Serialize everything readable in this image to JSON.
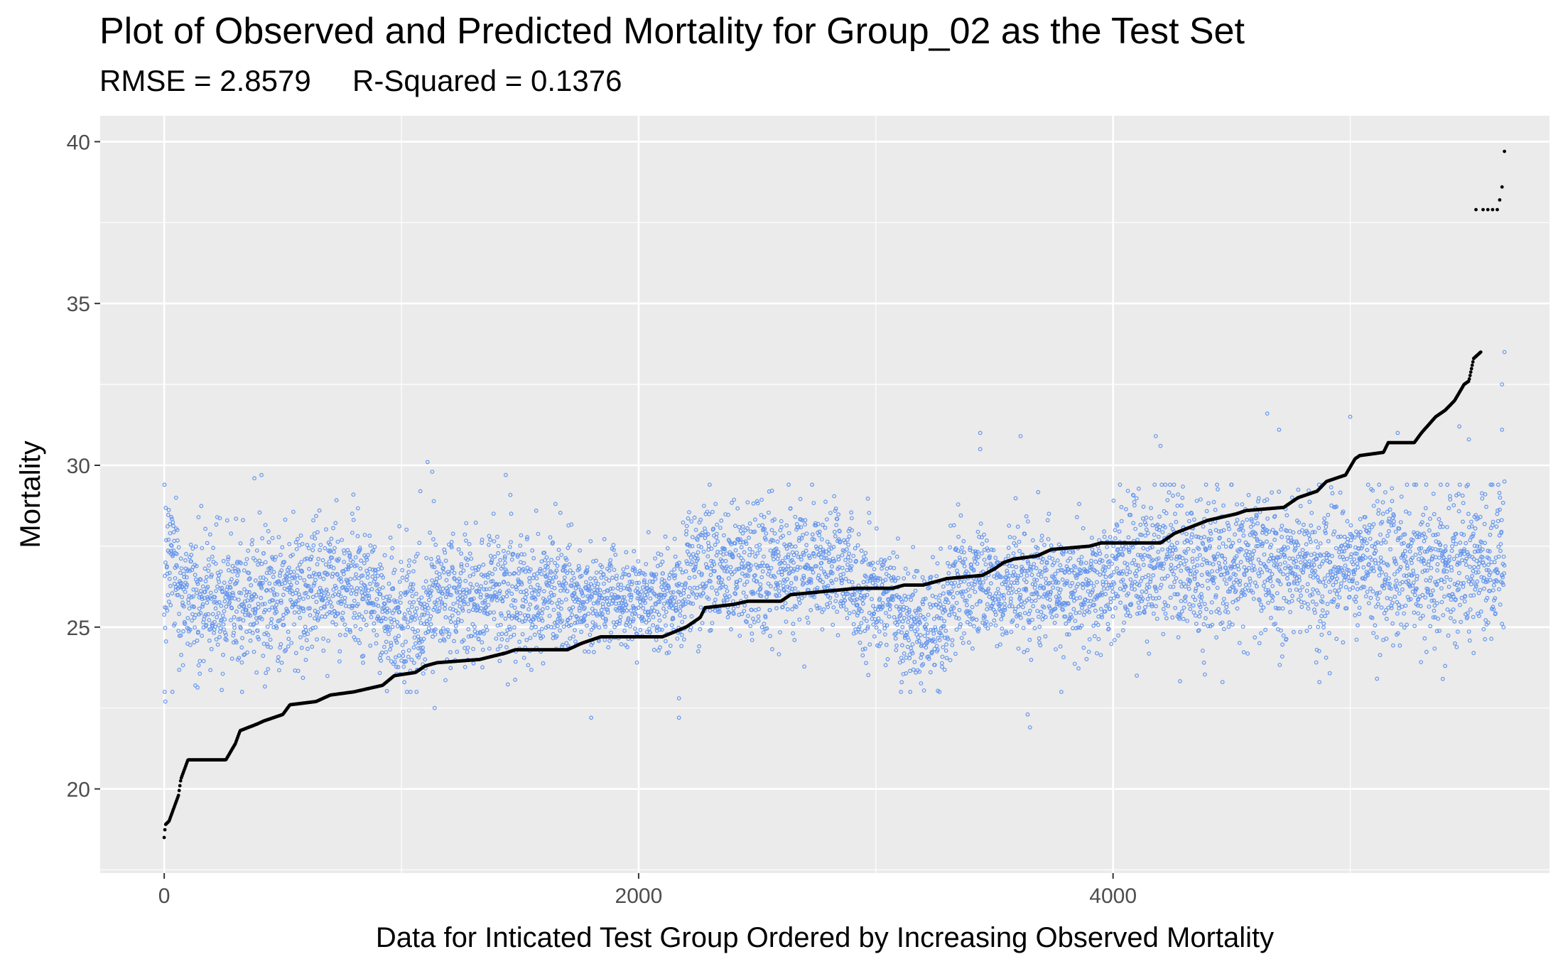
{
  "chart_data": {
    "type": "scatter",
    "title": "Plot of Observed and Predicted Mortality for Group_02 as the Test Set",
    "subtitle": "RMSE = 2.8579     R-Squared = 0.1376",
    "xlabel": "Data for Inticated Test Group Ordered by Increasing Observed Mortality",
    "ylabel": "Mortality",
    "xlim": [
      -270,
      5840
    ],
    "ylim": [
      17.4,
      40.8
    ],
    "x_ticks": [
      0,
      2000,
      4000
    ],
    "y_ticks": [
      20,
      25,
      30,
      35,
      40
    ],
    "grid": true,
    "legend": "none",
    "n_points": 5560,
    "colors": {
      "panel_background": "#ebebeb",
      "grid": "#ffffff",
      "observed": "#000000",
      "predicted": "#6495ed"
    },
    "observed_curve": [
      [
        0,
        18.5
      ],
      [
        5,
        18.9
      ],
      [
        20,
        19.0
      ],
      [
        40,
        19.4
      ],
      [
        60,
        19.8
      ],
      [
        70,
        20.3
      ],
      [
        85,
        20.6
      ],
      [
        100,
        20.9
      ],
      [
        260,
        20.9
      ],
      [
        300,
        21.4
      ],
      [
        320,
        21.8
      ],
      [
        390,
        22.0
      ],
      [
        420,
        22.1
      ],
      [
        500,
        22.3
      ],
      [
        530,
        22.6
      ],
      [
        640,
        22.7
      ],
      [
        700,
        22.9
      ],
      [
        800,
        23.0
      ],
      [
        920,
        23.2
      ],
      [
        970,
        23.5
      ],
      [
        1060,
        23.6
      ],
      [
        1100,
        23.8
      ],
      [
        1150,
        23.9
      ],
      [
        1330,
        24.0
      ],
      [
        1440,
        24.2
      ],
      [
        1480,
        24.3
      ],
      [
        1700,
        24.3
      ],
      [
        1760,
        24.5
      ],
      [
        1840,
        24.7
      ],
      [
        2100,
        24.7
      ],
      [
        2200,
        25.0
      ],
      [
        2260,
        25.3
      ],
      [
        2280,
        25.6
      ],
      [
        2400,
        25.7
      ],
      [
        2460,
        25.8
      ],
      [
        2600,
        25.8
      ],
      [
        2640,
        26.0
      ],
      [
        2780,
        26.1
      ],
      [
        2920,
        26.2
      ],
      [
        3070,
        26.2
      ],
      [
        3120,
        26.3
      ],
      [
        3200,
        26.3
      ],
      [
        3300,
        26.5
      ],
      [
        3450,
        26.6
      ],
      [
        3500,
        26.8
      ],
      [
        3540,
        27.0
      ],
      [
        3580,
        27.1
      ],
      [
        3680,
        27.2
      ],
      [
        3740,
        27.4
      ],
      [
        3900,
        27.5
      ],
      [
        3950,
        27.6
      ],
      [
        4200,
        27.6
      ],
      [
        4260,
        27.9
      ],
      [
        4330,
        28.1
      ],
      [
        4400,
        28.3
      ],
      [
        4520,
        28.5
      ],
      [
        4560,
        28.6
      ],
      [
        4720,
        28.7
      ],
      [
        4780,
        29.0
      ],
      [
        4860,
        29.2
      ],
      [
        4900,
        29.5
      ],
      [
        4980,
        29.7
      ],
      [
        5020,
        30.2
      ],
      [
        5040,
        30.3
      ],
      [
        5140,
        30.4
      ],
      [
        5160,
        30.7
      ],
      [
        5270,
        30.7
      ],
      [
        5300,
        31.0
      ],
      [
        5360,
        31.5
      ],
      [
        5400,
        31.7
      ],
      [
        5440,
        32.0
      ],
      [
        5480,
        32.5
      ],
      [
        5500,
        32.6
      ],
      [
        5520,
        33.3
      ],
      [
        5550,
        33.5
      ]
    ],
    "observed_top_points": [
      [
        5530,
        37.9
      ],
      [
        5560,
        37.9
      ],
      [
        5580,
        37.9
      ],
      [
        5600,
        37.9
      ],
      [
        5620,
        37.9
      ],
      [
        5630,
        38.2
      ],
      [
        5640,
        38.6
      ],
      [
        5650,
        39.7
      ]
    ],
    "predicted_outliers": [
      [
        2,
        23.0
      ],
      [
        5,
        22.7
      ],
      [
        30,
        28.4
      ],
      [
        50,
        29.0
      ],
      [
        380,
        29.6
      ],
      [
        410,
        29.7
      ],
      [
        1080,
        29.2
      ],
      [
        1110,
        30.1
      ],
      [
        1130,
        29.8
      ],
      [
        1440,
        29.7
      ],
      [
        1140,
        22.5
      ],
      [
        1800,
        22.2
      ],
      [
        2170,
        22.2
      ],
      [
        2170,
        22.8
      ],
      [
        3640,
        22.3
      ],
      [
        3650,
        21.9
      ],
      [
        3440,
        31.0
      ],
      [
        3440,
        30.5
      ],
      [
        3610,
        30.9
      ],
      [
        4180,
        30.9
      ],
      [
        4200,
        30.6
      ],
      [
        4650,
        31.6
      ],
      [
        4700,
        31.1
      ],
      [
        5000,
        31.5
      ],
      [
        5200,
        31.0
      ],
      [
        5460,
        31.2
      ],
      [
        5500,
        30.8
      ],
      [
        5650,
        33.5
      ],
      [
        5640,
        32.5
      ],
      [
        5640,
        31.1
      ],
      [
        5650,
        29.5
      ],
      [
        5640,
        25.1
      ],
      [
        4870,
        23.3
      ],
      [
        5390,
        23.4
      ],
      [
        5400,
        23.8
      ],
      [
        5520,
        24.2
      ],
      [
        4100,
        23.5
      ]
    ],
    "predicted_bands": [
      {
        "x": [
          0,
          60
        ],
        "mean": 26.5,
        "sd": 1.3
      },
      {
        "x": [
          60,
          600
        ],
        "mean": 25.8,
        "sd": 1.0
      },
      {
        "x": [
          600,
          900
        ],
        "mean": 26.2,
        "sd": 1.0
      },
      {
        "x": [
          900,
          1100
        ],
        "mean": 25.3,
        "sd": 1.1
      },
      {
        "x": [
          1100,
          1700
        ],
        "mean": 25.9,
        "sd": 1.0
      },
      {
        "x": [
          1700,
          2200
        ],
        "mean": 25.9,
        "sd": 0.75
      },
      {
        "x": [
          2200,
          2900
        ],
        "mean": 26.8,
        "sd": 1.0
      },
      {
        "x": [
          2900,
          3100
        ],
        "mean": 26.0,
        "sd": 0.9
      },
      {
        "x": [
          3100,
          3300
        ],
        "mean": 25.0,
        "sd": 0.9
      },
      {
        "x": [
          3300,
          4000
        ],
        "mean": 26.2,
        "sd": 0.95
      },
      {
        "x": [
          4000,
          5650
        ],
        "mean": 26.9,
        "sd": 1.1
      }
    ]
  }
}
